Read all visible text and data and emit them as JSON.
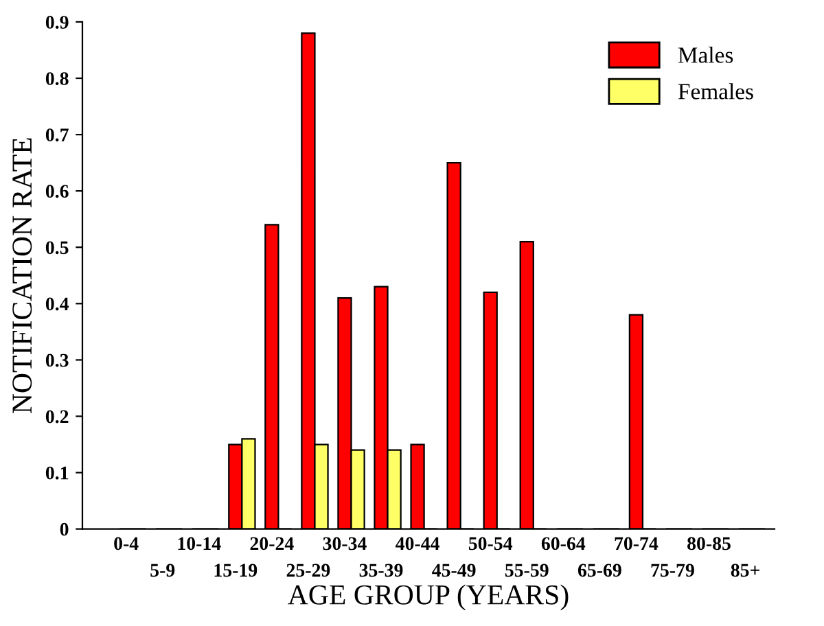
{
  "chart_data": {
    "type": "bar",
    "xlabel": "AGE GROUP (YEARS)",
    "ylabel": "NOTIFICATION RATE",
    "categories": [
      "0-4",
      "5-9",
      "10-14",
      "15-19",
      "20-24",
      "25-29",
      "30-34",
      "35-39",
      "40-44",
      "45-49",
      "50-54",
      "55-59",
      "60-64",
      "65-69",
      "70-74",
      "75-79",
      "80-85",
      "85+"
    ],
    "series": [
      {
        "name": "Males",
        "color": "#ff0000",
        "values": [
          0,
          0,
          0,
          0.15,
          0.54,
          0.88,
          0.41,
          0.43,
          0.15,
          0.65,
          0.42,
          0.51,
          0,
          0,
          0.38,
          0,
          0,
          0
        ]
      },
      {
        "name": "Females",
        "color": "#ffff66",
        "values": [
          0,
          0,
          0,
          0.16,
          0,
          0.15,
          0.14,
          0.14,
          0,
          0,
          0,
          0,
          0,
          0,
          0,
          0,
          0,
          0
        ]
      }
    ],
    "ylim": [
      0,
      0.9
    ],
    "yticks": [
      0,
      0.1,
      0.2,
      0.3,
      0.4,
      0.5,
      0.6,
      0.7,
      0.8,
      0.9
    ],
    "grid": false,
    "legend": "top right"
  }
}
